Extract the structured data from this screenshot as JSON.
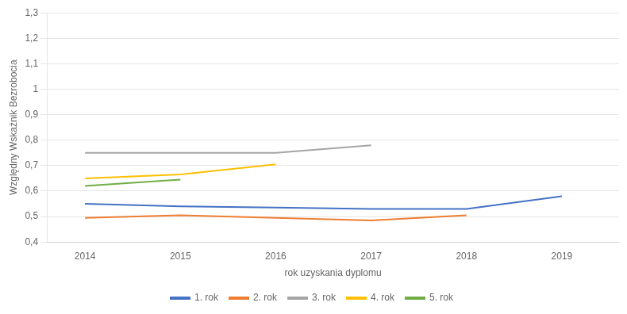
{
  "chart_data": {
    "type": "line",
    "xlabel": "rok uzyskania dyplomu",
    "ylabel": "Względny Wskaźnik Bezrobocia",
    "x": [
      2014,
      2015,
      2016,
      2017,
      2018,
      2019
    ],
    "series": [
      {
        "name": "1. rok",
        "color": "#4472c4",
        "values": [
          0.55,
          0.54,
          0.535,
          0.53,
          0.53,
          0.58
        ]
      },
      {
        "name": "2. rok",
        "color": "#ed7d31",
        "values": [
          0.495,
          0.505,
          0.495,
          0.485,
          0.505,
          null
        ]
      },
      {
        "name": "3. rok",
        "color": "#a5a5a5",
        "values": [
          0.75,
          0.75,
          0.75,
          0.78,
          null,
          null
        ]
      },
      {
        "name": "4. rok",
        "color": "#ffc000",
        "values": [
          0.65,
          0.665,
          0.705,
          null,
          null,
          null
        ]
      },
      {
        "name": "5. rok",
        "color": "#70ad47",
        "values": [
          0.62,
          0.645,
          null,
          null,
          null,
          null
        ]
      }
    ],
    "xlim": [
      2013.6,
      2019.6
    ],
    "xticks": [
      2014,
      2015,
      2016,
      2017,
      2018,
      2019
    ],
    "ylim": [
      0.4,
      1.3
    ],
    "yticks": [
      {
        "value": 0.4,
        "label": "0,4"
      },
      {
        "value": 0.5,
        "label": "0,5"
      },
      {
        "value": 0.6,
        "label": "0,6"
      },
      {
        "value": 0.7,
        "label": "0,7"
      },
      {
        "value": 0.8,
        "label": "0,8"
      },
      {
        "value": 0.9,
        "label": "0,9"
      },
      1,
      {
        "value": 1.1,
        "label": "1,1"
      },
      {
        "value": 1.2,
        "label": "1,2"
      },
      {
        "value": 1.3,
        "label": "1,3"
      }
    ],
    "grid": true,
    "legend": "bottom"
  }
}
